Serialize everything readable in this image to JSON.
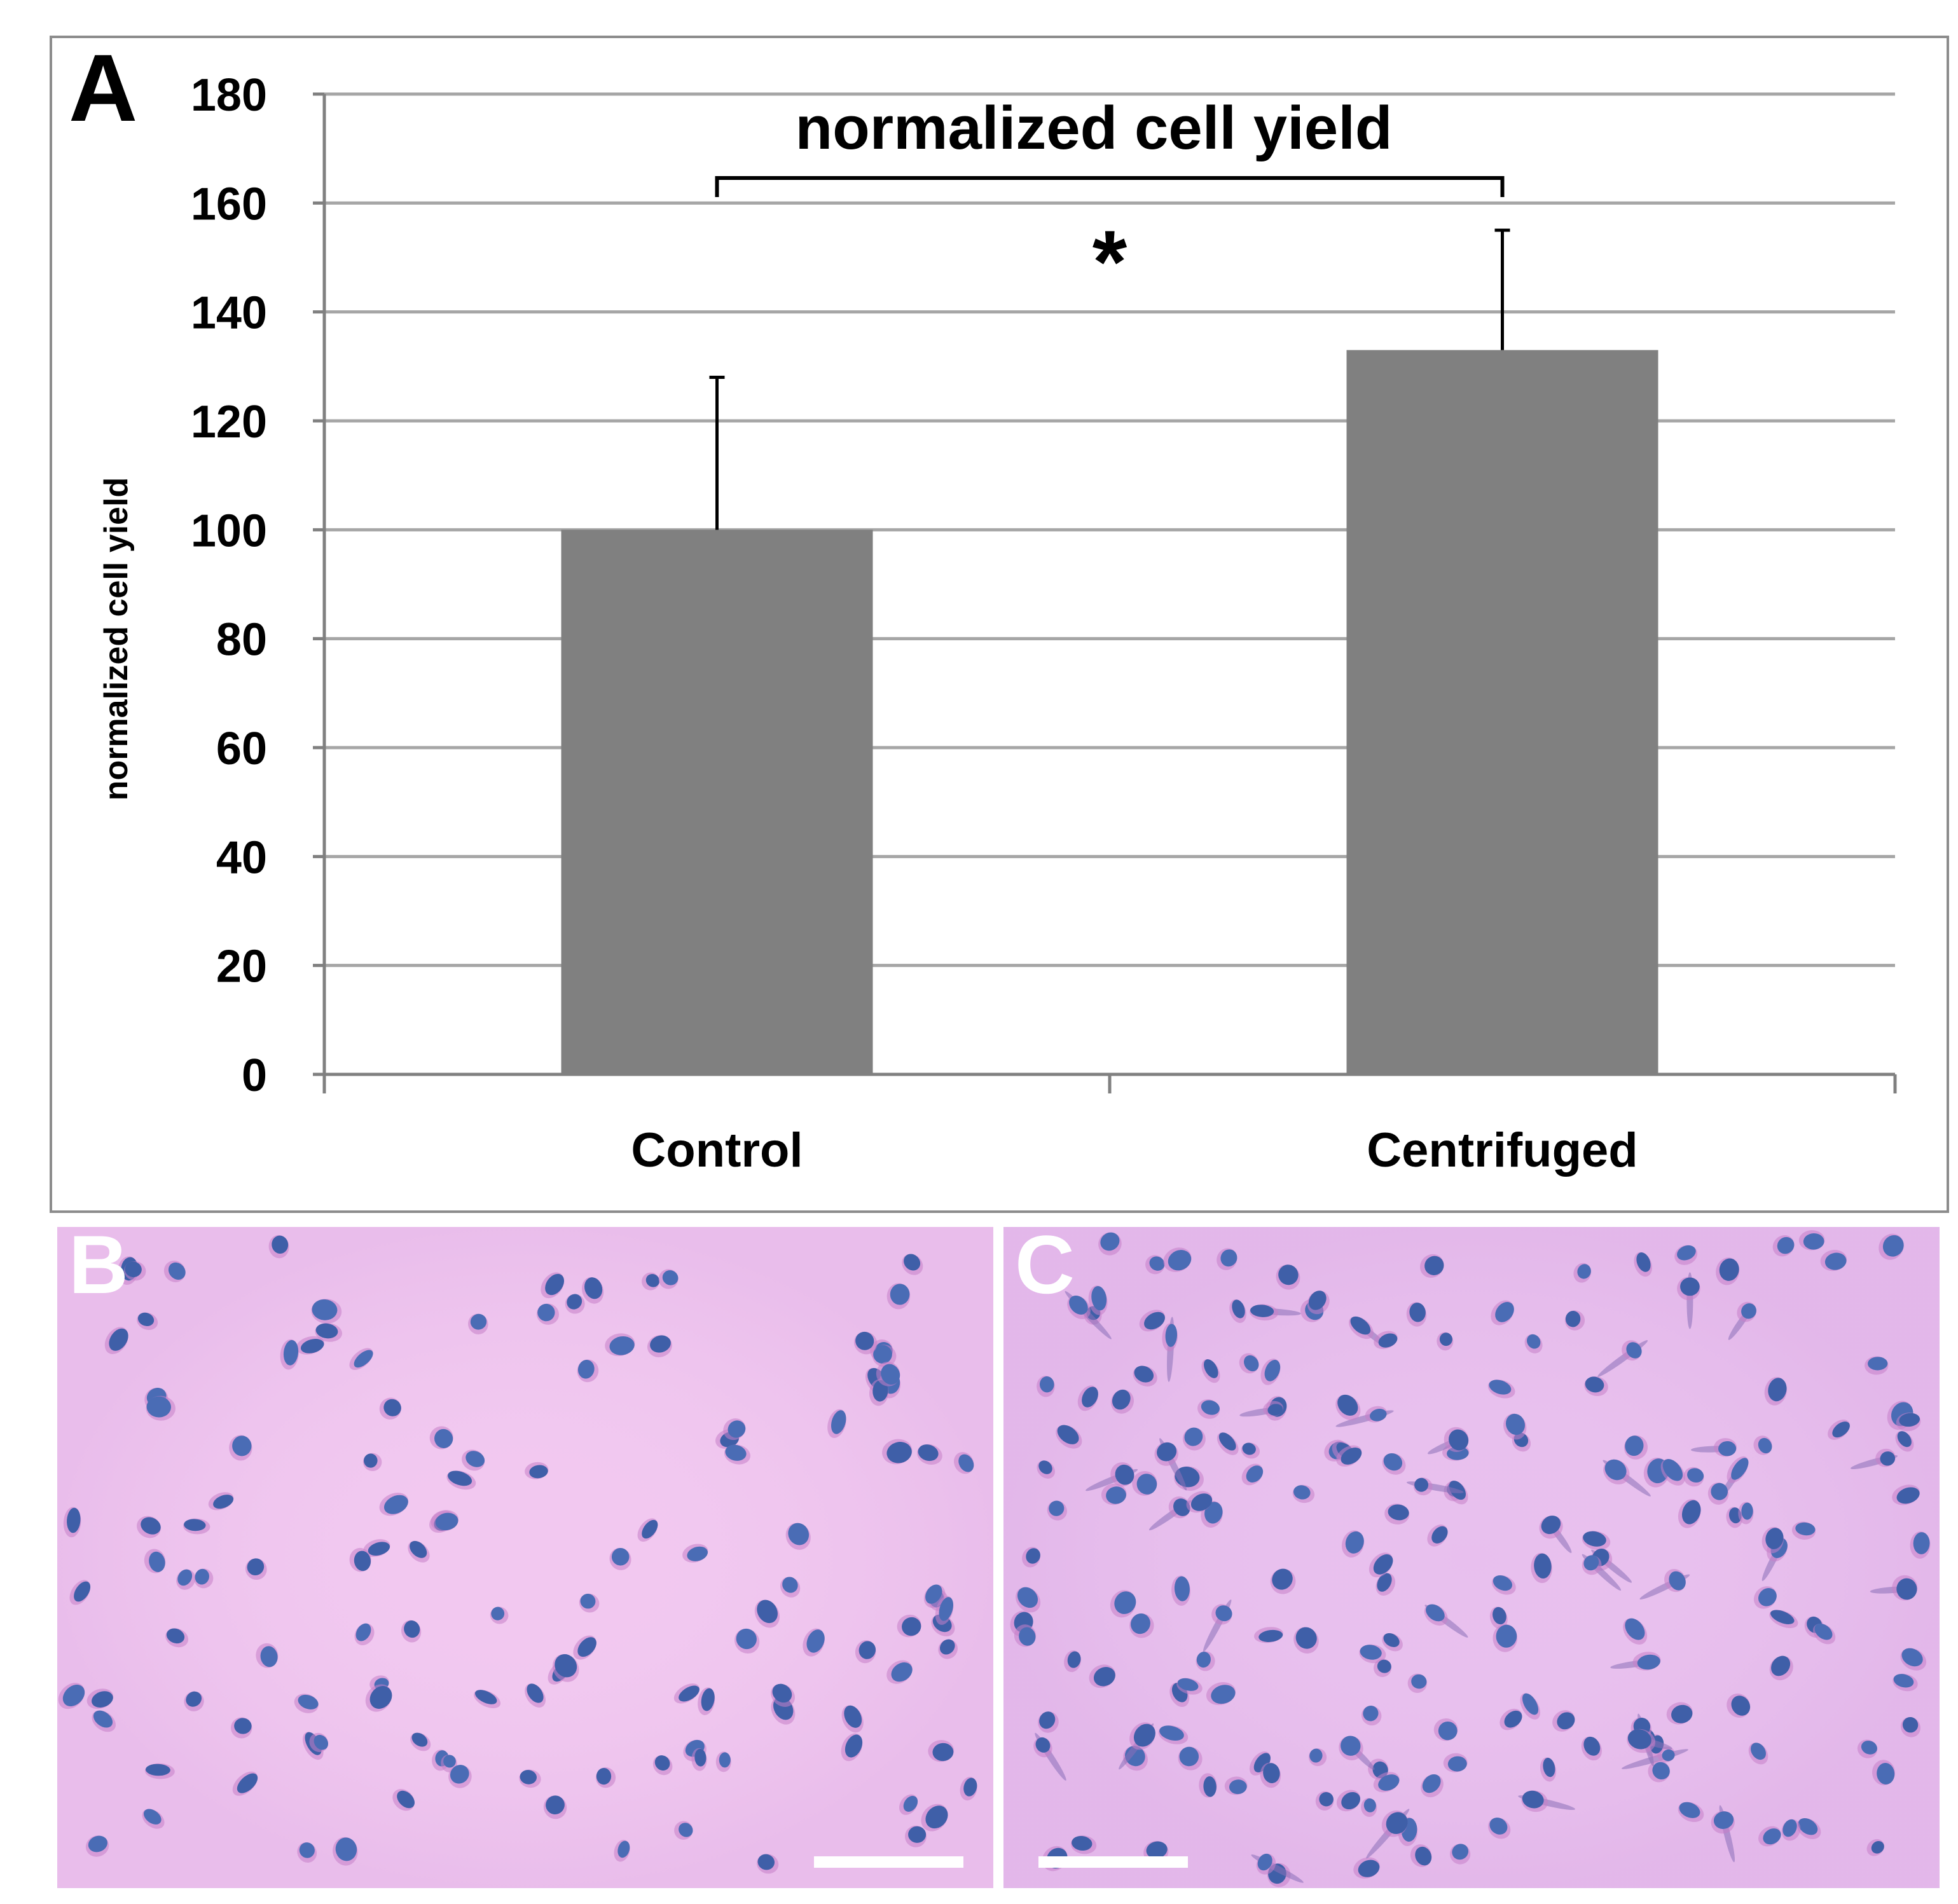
{
  "chart_data": {
    "type": "bar",
    "panel_label": "A",
    "title": "normalized cell yield",
    "ylabel": "normalized cell yield",
    "xlabel": "",
    "categories": [
      "Control",
      "Centrifuged"
    ],
    "values": [
      100,
      133
    ],
    "error_upper": [
      28,
      22
    ],
    "ylim": [
      0,
      180
    ],
    "yticks": [
      0,
      20,
      40,
      60,
      80,
      100,
      120,
      140,
      160,
      180
    ],
    "grid": true,
    "legend": "none",
    "significance": {
      "between": [
        "Control",
        "Centrifuged"
      ],
      "marker": "*"
    },
    "colors": {
      "bar": "#808080",
      "grid": "#a6a6a6",
      "axis": "#808080",
      "text": "#000000"
    }
  },
  "micrographs": [
    {
      "label": "B"
    },
    {
      "label": "C"
    }
  ]
}
